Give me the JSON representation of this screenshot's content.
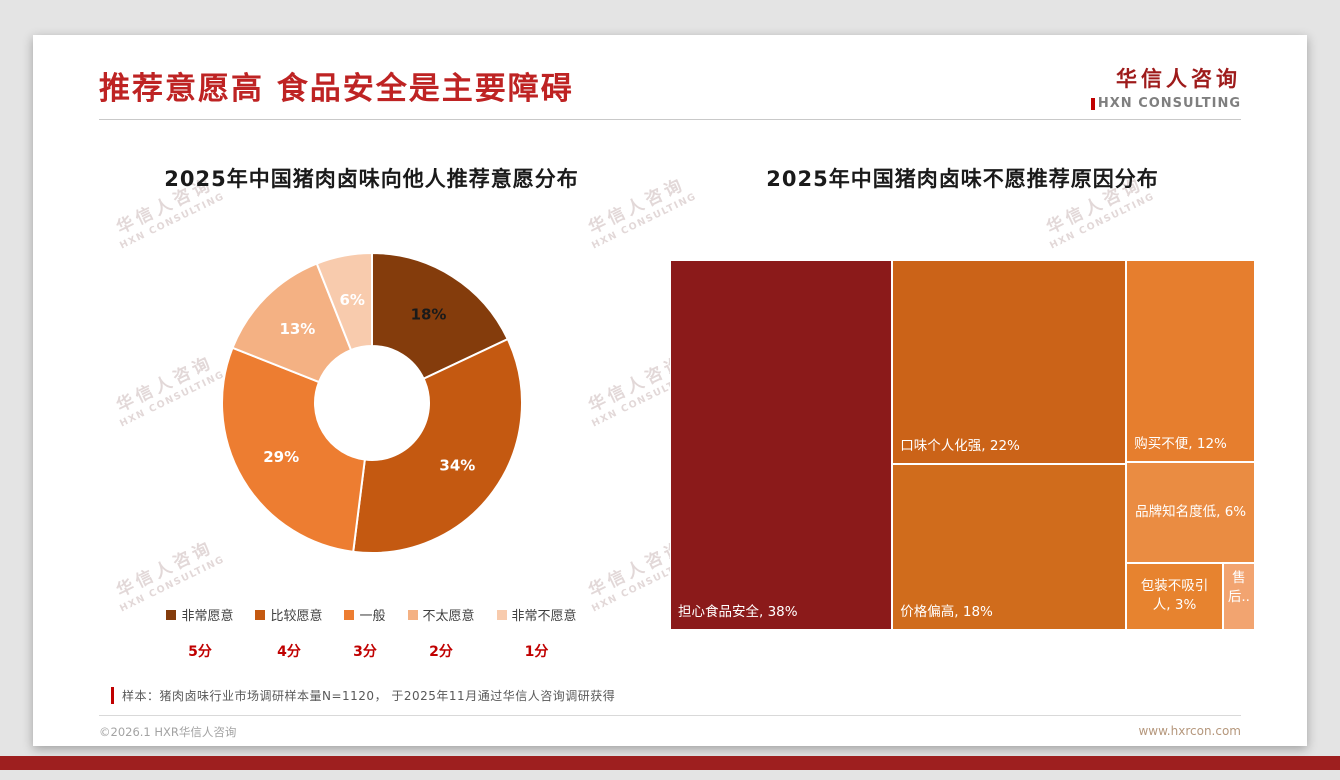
{
  "header": {
    "title": "推荐意愿高 食品安全是主要障碍",
    "logo": {
      "name": "华信人咨询",
      "subtitle": "HXN CONSULTING"
    }
  },
  "watermark": {
    "line1": "华信人咨询",
    "line2": "HXN CONSULTING"
  },
  "chart_data": [
    {
      "type": "pie",
      "subtype": "donut",
      "title": "2025年中国猪肉卤味向他人推荐意愿分布",
      "categories": [
        "非常愿意",
        "比较愿意",
        "一般",
        "不太愿意",
        "非常不愿意"
      ],
      "values": [
        18,
        34,
        29,
        13,
        6
      ],
      "unit": "%",
      "colors": [
        "#843C0C",
        "#C45911",
        "#ED7D31",
        "#F4B183",
        "#F8CBAD"
      ],
      "label_colors": [
        "#1A1A1A",
        "#FFFFFF",
        "#FFFFFF",
        "#FFFFFF",
        "#FFFFFF"
      ],
      "score_labels": [
        "5分",
        "4分",
        "3分",
        "2分",
        "1分"
      ],
      "legend_position": "bottom",
      "start_angle_deg": 0
    },
    {
      "type": "treemap",
      "title": "2025年中国猪肉卤味不愿推荐原因分布",
      "items": [
        {
          "name": "担心食品安全",
          "value": 38,
          "label": "担心食品安全, 38%",
          "color": "#8B1A1A"
        },
        {
          "name": "口味个人化强",
          "value": 22,
          "label": "口味个人化强, 22%",
          "color": "#CB6318"
        },
        {
          "name": "价格偏高",
          "value": 18,
          "label": "价格偏高, 18%",
          "color": "#D06C1C"
        },
        {
          "name": "购买不便",
          "value": 12,
          "label": "购买不便, 12%",
          "color": "#E67E2E"
        },
        {
          "name": "品牌知名度低",
          "value": 6,
          "label": "品牌知名度低, 6%",
          "color": "#EA8C42"
        },
        {
          "name": "包装不吸引人",
          "value": 3,
          "label": "包装不吸引人, 3%",
          "color": "#E7832F"
        },
        {
          "name": "售后",
          "value": 1,
          "label": "售后..",
          "color": "#F2A470"
        }
      ]
    }
  ],
  "footnote": {
    "text": "样本：猪肉卤味行业市场调研样本量N=1120， 于2025年11月通过华信人咨询调研获得"
  },
  "footer": {
    "copyright": "©2026.1 HXR华信人咨询",
    "website": "www.hxrcon.com"
  }
}
